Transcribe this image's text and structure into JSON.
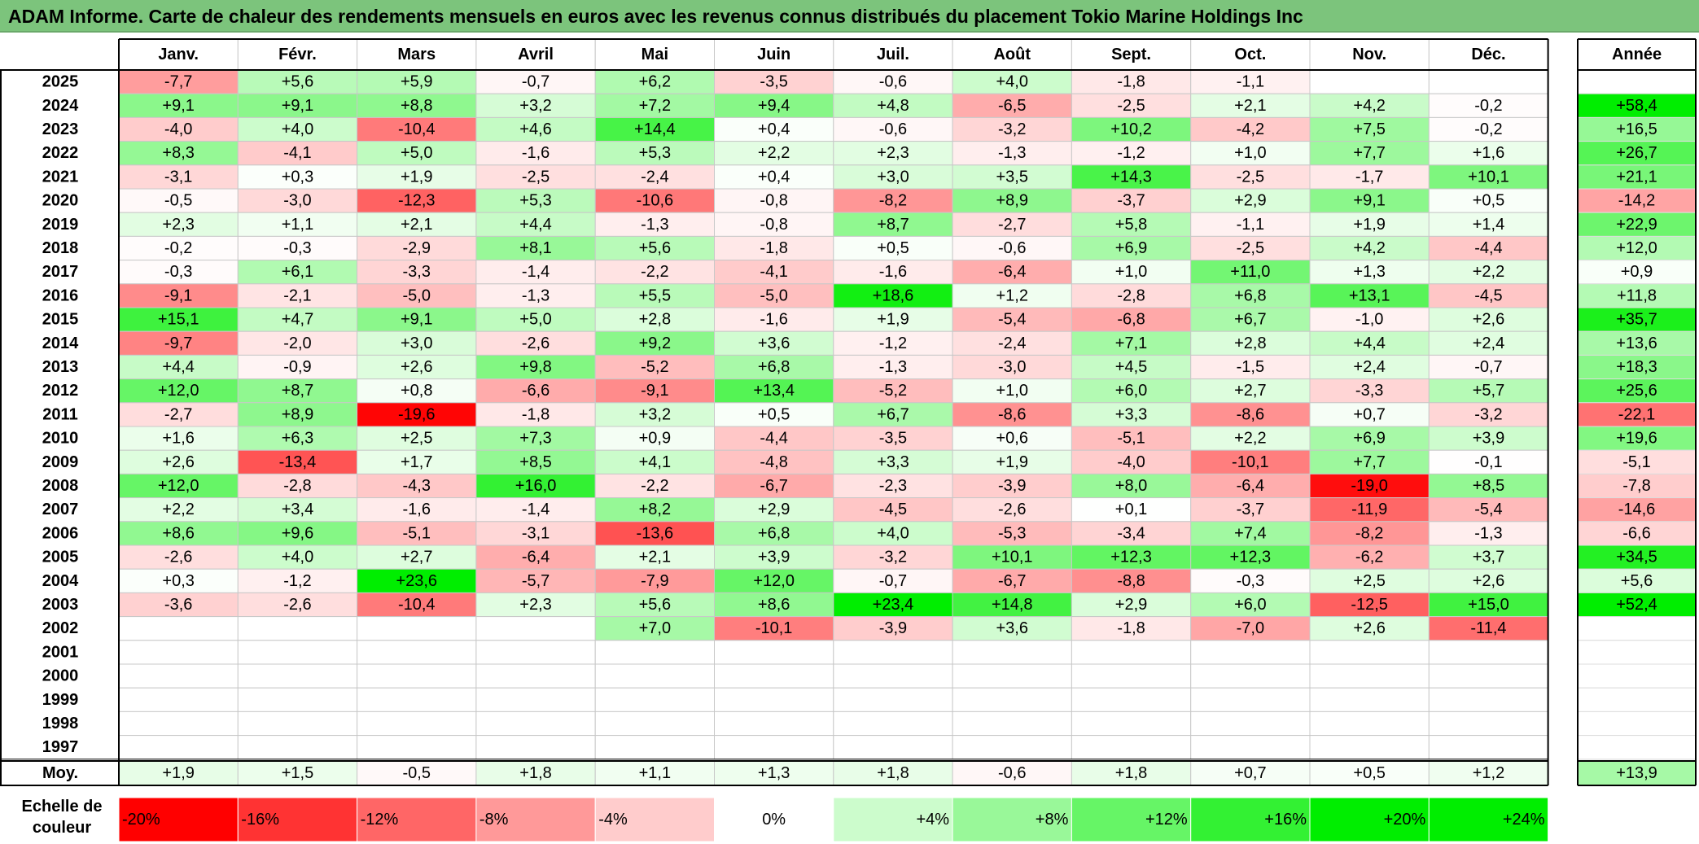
{
  "title": "ADAM Informe. Carte de chaleur des rendements mensuels en euros avec les revenus connus distribués du placement Tokio Marine Holdings Inc",
  "chart_data": {
    "type": "heatmap",
    "title": "ADAM Informe. Carte de chaleur des rendements mensuels en euros avec les revenus connus distribués du placement Tokio Marine Holdings Inc",
    "months": [
      "Janv.",
      "Févr.",
      "Mars",
      "Avril",
      "Mai",
      "Juin",
      "Juil.",
      "Août",
      "Sept.",
      "Oct.",
      "Nov.",
      "Déc."
    ],
    "year_header": "Année",
    "rows": [
      {
        "year": "2025",
        "values": [
          "-7,7",
          "+5,6",
          "+5,9",
          "-0,7",
          "+6,2",
          "-3,5",
          "-0,6",
          "+4,0",
          "-1,8",
          "-1,1",
          "",
          ""
        ],
        "annual": ""
      },
      {
        "year": "2024",
        "values": [
          "+9,1",
          "+9,1",
          "+8,8",
          "+3,2",
          "+7,2",
          "+9,4",
          "+4,8",
          "-6,5",
          "-2,5",
          "+2,1",
          "+4,2",
          "-0,2"
        ],
        "annual": "+58,4"
      },
      {
        "year": "2023",
        "values": [
          "-4,0",
          "+4,0",
          "-10,4",
          "+4,6",
          "+14,4",
          "+0,4",
          "-0,6",
          "-3,2",
          "+10,2",
          "-4,2",
          "+7,5",
          "-0,2"
        ],
        "annual": "+16,5"
      },
      {
        "year": "2022",
        "values": [
          "+8,3",
          "-4,1",
          "+5,0",
          "-1,6",
          "+5,3",
          "+2,2",
          "+2,3",
          "-1,3",
          "-1,2",
          "+1,0",
          "+7,7",
          "+1,6"
        ],
        "annual": "+26,7"
      },
      {
        "year": "2021",
        "values": [
          "-3,1",
          "+0,3",
          "+1,9",
          "-2,5",
          "-2,4",
          "+0,4",
          "+3,0",
          "+3,5",
          "+14,3",
          "-2,5",
          "-1,7",
          "+10,1"
        ],
        "annual": "+21,1"
      },
      {
        "year": "2020",
        "values": [
          "-0,5",
          "-3,0",
          "-12,3",
          "+5,3",
          "-10,6",
          "-0,8",
          "-8,2",
          "+8,9",
          "-3,7",
          "+2,9",
          "+9,1",
          "+0,5"
        ],
        "annual": "-14,2"
      },
      {
        "year": "2019",
        "values": [
          "+2,3",
          "+1,1",
          "+2,1",
          "+4,4",
          "-1,3",
          "-0,8",
          "+8,7",
          "-2,7",
          "+5,8",
          "-1,1",
          "+1,9",
          "+1,4"
        ],
        "annual": "+22,9"
      },
      {
        "year": "2018",
        "values": [
          "-0,2",
          "-0,3",
          "-2,9",
          "+8,1",
          "+5,6",
          "-1,8",
          "+0,5",
          "-0,6",
          "+6,9",
          "-2,5",
          "+4,2",
          "-4,4"
        ],
        "annual": "+12,0"
      },
      {
        "year": "2017",
        "values": [
          "-0,3",
          "+6,1",
          "-3,3",
          "-1,4",
          "-2,2",
          "-4,1",
          "-1,6",
          "-6,4",
          "+1,0",
          "+11,0",
          "+1,3",
          "+2,2"
        ],
        "annual": "+0,9"
      },
      {
        "year": "2016",
        "values": [
          "-9,1",
          "-2,1",
          "-5,0",
          "-1,3",
          "+5,5",
          "-5,0",
          "+18,6",
          "+1,2",
          "-2,8",
          "+6,8",
          "+13,1",
          "-4,5"
        ],
        "annual": "+11,8"
      },
      {
        "year": "2015",
        "values": [
          "+15,1",
          "+4,7",
          "+9,1",
          "+5,0",
          "+2,8",
          "-1,6",
          "+1,9",
          "-5,4",
          "-6,8",
          "+6,7",
          "-1,0",
          "+2,6"
        ],
        "annual": "+35,7"
      },
      {
        "year": "2014",
        "values": [
          "-9,7",
          "-2,0",
          "+3,0",
          "-2,6",
          "+9,2",
          "+3,6",
          "-1,2",
          "-2,4",
          "+7,1",
          "+2,8",
          "+4,4",
          "+2,4"
        ],
        "annual": "+13,6"
      },
      {
        "year": "2013",
        "values": [
          "+4,4",
          "-0,9",
          "+2,6",
          "+9,8",
          "-5,2",
          "+6,8",
          "-1,3",
          "-3,0",
          "+4,5",
          "-1,5",
          "+2,4",
          "-0,7"
        ],
        "annual": "+18,3"
      },
      {
        "year": "2012",
        "values": [
          "+12,0",
          "+8,7",
          "+0,8",
          "-6,6",
          "-9,1",
          "+13,4",
          "-5,2",
          "+1,0",
          "+6,0",
          "+2,7",
          "-3,3",
          "+5,7"
        ],
        "annual": "+25,6"
      },
      {
        "year": "2011",
        "values": [
          "-2,7",
          "+8,9",
          "-19,6",
          "-1,8",
          "+3,2",
          "+0,5",
          "+6,7",
          "-8,6",
          "+3,3",
          "-8,6",
          "+0,7",
          "-3,2"
        ],
        "annual": "-22,1"
      },
      {
        "year": "2010",
        "values": [
          "+1,6",
          "+6,3",
          "+2,5",
          "+7,3",
          "+0,9",
          "-4,4",
          "-3,5",
          "+0,6",
          "-5,1",
          "+2,2",
          "+6,9",
          "+3,9"
        ],
        "annual": "+19,6"
      },
      {
        "year": "2009",
        "values": [
          "+2,6",
          "-13,4",
          "+1,7",
          "+8,5",
          "+4,1",
          "-4,8",
          "+3,3",
          "+1,9",
          "-4,0",
          "-10,1",
          "+7,7",
          "-0,1"
        ],
        "annual": "-5,1"
      },
      {
        "year": "2008",
        "values": [
          "+12,0",
          "-2,8",
          "-4,3",
          "+16,0",
          "-2,2",
          "-6,7",
          "-2,3",
          "-3,9",
          "+8,0",
          "-6,4",
          "-19,0",
          "+8,5"
        ],
        "annual": "-7,8"
      },
      {
        "year": "2007",
        "values": [
          "+2,2",
          "+3,4",
          "-1,6",
          "-1,4",
          "+8,2",
          "+2,9",
          "-4,5",
          "-2,6",
          "+0,1",
          "-3,7",
          "-11,9",
          "-5,4"
        ],
        "annual": "-14,6"
      },
      {
        "year": "2006",
        "values": [
          "+8,6",
          "+9,6",
          "-5,1",
          "-3,1",
          "-13,6",
          "+6,8",
          "+4,0",
          "-5,3",
          "-3,4",
          "+7,4",
          "-8,2",
          "-1,3"
        ],
        "annual": "-6,6"
      },
      {
        "year": "2005",
        "values": [
          "-2,6",
          "+4,0",
          "+2,7",
          "-6,4",
          "+2,1",
          "+3,9",
          "-3,2",
          "+10,1",
          "+12,3",
          "+12,3",
          "-6,2",
          "+3,7"
        ],
        "annual": "+34,5"
      },
      {
        "year": "2004",
        "values": [
          "+0,3",
          "-1,2",
          "+23,6",
          "-5,7",
          "-7,9",
          "+12,0",
          "-0,7",
          "-6,7",
          "-8,8",
          "-0,3",
          "+2,5",
          "+2,6"
        ],
        "annual": "+5,6"
      },
      {
        "year": "2003",
        "values": [
          "-3,6",
          "-2,6",
          "-10,4",
          "+2,3",
          "+5,6",
          "+8,6",
          "+23,4",
          "+14,8",
          "+2,9",
          "+6,0",
          "-12,5",
          "+15,0"
        ],
        "annual": "+52,4"
      },
      {
        "year": "2002",
        "values": [
          "",
          "",
          "",
          "",
          "+7,0",
          "-10,1",
          "-3,9",
          "+3,6",
          "-1,8",
          "-7,0",
          "+2,6",
          "-11,4"
        ],
        "annual": ""
      },
      {
        "year": "2001",
        "values": [
          "",
          "",
          "",
          "",
          "",
          "",
          "",
          "",
          "",
          "",
          "",
          ""
        ],
        "annual": ""
      },
      {
        "year": "2000",
        "values": [
          "",
          "",
          "",
          "",
          "",
          "",
          "",
          "",
          "",
          "",
          "",
          ""
        ],
        "annual": ""
      },
      {
        "year": "1999",
        "values": [
          "",
          "",
          "",
          "",
          "",
          "",
          "",
          "",
          "",
          "",
          "",
          ""
        ],
        "annual": ""
      },
      {
        "year": "1998",
        "values": [
          "",
          "",
          "",
          "",
          "",
          "",
          "",
          "",
          "",
          "",
          "",
          ""
        ],
        "annual": ""
      },
      {
        "year": "1997",
        "values": [
          "",
          "",
          "",
          "",
          "",
          "",
          "",
          "",
          "",
          "",
          "",
          ""
        ],
        "annual": ""
      }
    ],
    "average": {
      "label": "Moy.",
      "values": [
        "+1,9",
        "+1,5",
        "-0,5",
        "+1,8",
        "+1,1",
        "+1,3",
        "+1,8",
        "-0,6",
        "+1,8",
        "+0,7",
        "+0,5",
        "+1,2"
      ],
      "annual": "+13,9"
    },
    "legend": {
      "label": "Echelle de couleur",
      "items": [
        "-20%",
        "-16%",
        "-12%",
        "-8%",
        "-4%",
        "0%",
        "+4%",
        "+8%",
        "+12%",
        "+16%",
        "+20%",
        "+24%"
      ],
      "values": [
        -20,
        -16,
        -12,
        -8,
        -4,
        0,
        4,
        8,
        12,
        16,
        20,
        24
      ]
    },
    "colors": {
      "negative": "#ff0000",
      "positive": "#00ee00",
      "neutral": "#ffffff"
    }
  }
}
